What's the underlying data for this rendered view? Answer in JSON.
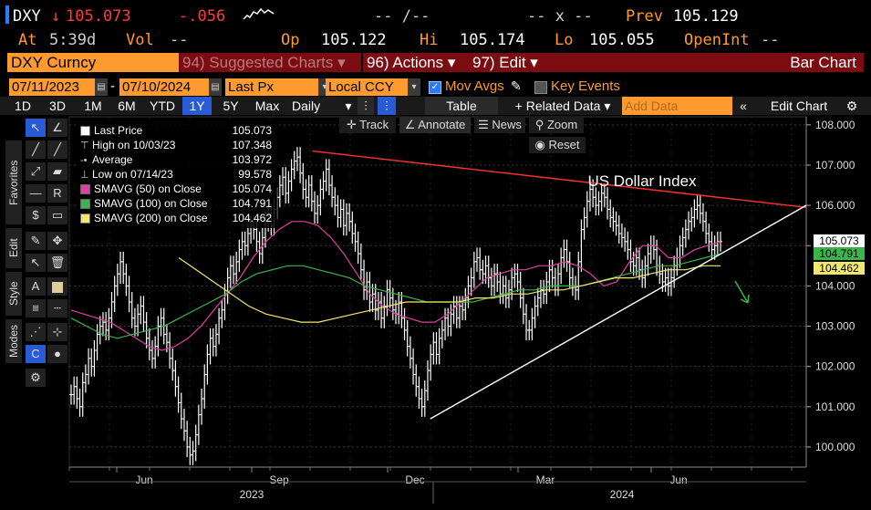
{
  "header": {
    "ticker": "DXY",
    "arrow": "↓",
    "last": "105.073",
    "change": "-.056",
    "bidask": "-- /--",
    "size": "-- x --",
    "prev_label": "Prev",
    "prev": "105.129",
    "at_label": "At",
    "time": "5:39d",
    "vol_label": "Vol",
    "vol": "--",
    "op_label": "Op",
    "op": "105.122",
    "hi_label": "Hi",
    "hi": "105.174",
    "lo_label": "Lo",
    "lo": "105.055",
    "oi_label": "OpenInt",
    "oi": "--"
  },
  "command_bar": {
    "security": "DXY Curncy",
    "suggested": "94) Suggested Charts ▾",
    "actions": "96) Actions ▾",
    "edit": "97) Edit ▾",
    "chart_type": "Bar Chart"
  },
  "controls": {
    "start_date": "07/11/2023",
    "end_date": "07/10/2024",
    "field": "Last Px",
    "currency": "Local CCY",
    "mov_avgs": "Mov Avgs",
    "key_events": "Key Events"
  },
  "periods": [
    "1D",
    "3D",
    "1M",
    "6M",
    "YTD",
    "1Y",
    "5Y",
    "Max"
  ],
  "active_period": "1Y",
  "toolbar": {
    "frequency": "Daily",
    "table": "Table",
    "related": "+ Related Data ▾",
    "add_data_placeholder": "Add Data",
    "edit_chart": "Edit Chart"
  },
  "chart_tools": {
    "track": "Track",
    "annotate": "Annotate",
    "news": "News",
    "zoom": "Zoom",
    "reset": "Reset"
  },
  "side_tabs": [
    "Favorites",
    "Edit",
    "Style",
    "Modes"
  ],
  "legend": [
    {
      "label": "Last Price",
      "value": "105.073",
      "color": "#ffffff",
      "marker": "box"
    },
    {
      "label": "High on 10/03/23",
      "value": "107.348",
      "color": "#cccccc",
      "marker": "tee-up"
    },
    {
      "label": "Average",
      "value": "103.972",
      "color": "#cccccc",
      "marker": "dash"
    },
    {
      "label": "Low on 07/14/23",
      "value": "99.578",
      "color": "#cccccc",
      "marker": "tee-down"
    },
    {
      "label": "SMAVG (50)  on Close",
      "value": "105.074",
      "color": "#e040a0",
      "marker": "box"
    },
    {
      "label": "SMAVG (100)  on Close",
      "value": "104.791",
      "color": "#39b54a",
      "marker": "box"
    },
    {
      "label": "SMAVG (200)  on Close",
      "value": "104.462",
      "color": "#f2e86d",
      "marker": "box"
    }
  ],
  "chart_data": {
    "type": "bar",
    "title": "US Dollar Index",
    "ylim": [
      99.5,
      108.2
    ],
    "y_ticks": [
      "100.000",
      "101.000",
      "102.000",
      "103.000",
      "104.000",
      "105.000",
      "106.000",
      "107.000",
      "108.000"
    ],
    "x_month_labels": [
      "Jun",
      "Sep",
      "Dec",
      "Mar",
      "Jun"
    ],
    "x_year_labels": [
      "2023",
      "2024"
    ],
    "current_tags": [
      {
        "label": "105.073",
        "color": "#ffffff",
        "text_color": "#000000"
      },
      {
        "label": "104.791",
        "color": "#39b54a",
        "text_color": "#000000"
      },
      {
        "label": "104.462",
        "color": "#f2e86d",
        "text_color": "#000000"
      }
    ],
    "series": [
      {
        "name": "Last Price",
        "values": [
          101.3,
          101.5,
          101.2,
          101.0,
          101.6,
          101.8,
          102.2,
          102.0,
          102.4,
          102.8,
          103.0,
          103.1,
          102.9,
          103.2,
          103.6,
          104.0,
          104.3,
          104.6,
          104.3,
          104.0,
          103.6,
          103.2,
          103.0,
          103.3,
          103.5,
          103.1,
          102.7,
          102.4,
          102.2,
          102.5,
          103.0,
          103.2,
          102.8,
          102.6,
          102.2,
          101.9,
          101.5,
          101.1,
          100.7,
          100.4,
          100.0,
          99.8,
          99.9,
          100.3,
          100.8,
          101.2,
          101.8,
          102.3,
          102.7,
          102.5,
          102.8,
          103.2,
          103.4,
          103.8,
          104.2,
          104.5,
          104.3,
          104.6,
          104.9,
          105.1,
          105.0,
          105.3,
          105.5,
          105.4,
          105.1,
          104.8,
          105.2,
          105.6,
          105.8,
          105.5,
          105.9,
          106.2,
          106.5,
          106.7,
          106.3,
          106.6,
          106.9,
          107.1,
          107.2,
          106.8,
          106.4,
          106.2,
          106.5,
          106.1,
          105.8,
          106.0,
          106.4,
          106.6,
          106.9,
          106.5,
          106.2,
          106.0,
          105.7,
          105.9,
          105.5,
          105.8,
          105.6,
          105.3,
          105.1,
          104.8,
          104.4,
          103.9,
          104.1,
          103.6,
          103.8,
          103.4,
          103.6,
          103.2,
          103.5,
          103.9,
          103.7,
          103.4,
          103.3,
          103.6,
          103.2,
          102.9,
          102.5,
          102.2,
          101.8,
          101.5,
          101.2,
          101.0,
          101.4,
          101.9,
          102.3,
          102.6,
          102.3,
          102.7,
          102.9,
          103.2,
          103.0,
          103.3,
          103.5,
          103.2,
          103.5,
          103.4,
          103.7,
          104.0,
          104.2,
          104.6,
          104.7,
          104.4,
          104.3,
          104.5,
          104.2,
          104.0,
          104.3,
          104.1,
          103.8,
          104.0,
          103.7,
          103.9,
          104.2,
          104.3,
          104.1,
          103.7,
          103.3,
          102.9,
          102.9,
          103.2,
          103.5,
          103.7,
          103.9,
          103.8,
          104.1,
          104.4,
          104.2,
          104.0,
          104.3,
          104.7,
          104.9,
          104.6,
          104.2,
          104.0,
          103.9,
          104.6,
          105.4,
          105.7,
          106.1,
          106.4,
          106.2,
          106.0,
          106.1,
          106.3,
          106.2,
          105.9,
          105.7,
          105.6,
          105.5,
          105.3,
          105.2,
          105.1,
          104.9,
          104.6,
          104.5,
          104.7,
          104.4,
          104.2,
          104.5,
          104.8,
          105.0,
          104.9,
          104.5,
          104.3,
          104.1,
          104.2,
          104.0,
          104.2,
          104.5,
          104.7,
          105.0,
          105.2,
          105.4,
          105.6,
          105.7,
          105.9,
          106.0,
          105.8,
          105.6,
          105.3,
          105.1,
          104.9,
          105.0,
          105.1,
          105.1
        ]
      },
      {
        "name": "SMAVG (50)",
        "values": [
          103.4,
          103.3,
          103.2,
          103.1,
          102.9,
          102.7,
          102.5,
          102.4,
          102.5,
          102.7,
          103.0,
          103.4,
          103.8,
          104.2,
          104.7,
          105.1,
          105.4,
          105.6,
          105.6,
          105.5,
          105.2,
          104.8,
          104.3,
          103.8,
          103.5,
          103.3,
          103.2,
          103.1,
          103.1,
          103.3,
          103.6,
          103.9,
          104.2,
          104.3,
          104.4,
          104.4,
          104.5,
          104.5,
          104.6,
          104.5,
          104.3,
          104.0,
          104.1,
          104.6,
          105.0,
          105.0,
          104.7,
          104.7,
          104.9,
          105.0,
          105.1
        ]
      },
      {
        "name": "SMAVG (100)",
        "values": [
          103.2,
          103.0,
          102.8,
          102.7,
          102.8,
          102.9,
          103.0,
          103.2,
          103.4,
          103.6,
          103.8,
          104.1,
          104.3,
          104.4,
          104.5,
          104.5,
          104.4,
          104.3,
          104.2,
          104.0,
          103.9,
          103.8,
          103.7,
          103.6,
          103.6,
          103.6,
          103.6,
          103.7,
          103.8,
          103.9,
          103.9,
          104.0,
          104.0,
          104.0,
          104.1,
          104.2,
          104.3,
          104.4,
          104.5,
          104.5,
          104.6,
          104.7,
          104.8
        ]
      },
      {
        "name": "SMAVG (200)",
        "values": [
          104.7,
          104.4,
          104.1,
          103.8,
          103.5,
          103.3,
          103.2,
          103.1,
          103.1,
          103.2,
          103.3,
          103.4,
          103.5,
          103.6,
          103.6,
          103.6,
          103.6,
          103.7,
          103.7,
          103.8,
          103.8,
          103.9,
          103.9,
          104.0,
          104.1,
          104.2,
          104.2,
          104.3,
          104.4,
          104.4,
          104.5,
          104.5
        ]
      }
    ],
    "trendlines": [
      {
        "color": "#ff3030",
        "from": [
          0.33,
          107.35
        ],
        "to": [
          1.0,
          105.95
        ]
      },
      {
        "color": "#ffffff",
        "from": [
          0.49,
          100.7
        ],
        "to": [
          1.0,
          106.0
        ]
      }
    ],
    "grid": true
  }
}
